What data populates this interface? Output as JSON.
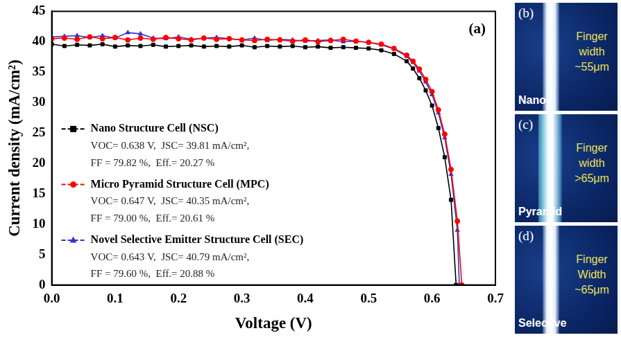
{
  "chart_data": {
    "type": "line",
    "panel_label": "(a)",
    "x_label": "Voltage (V)",
    "y_label": "Current density (mA/cm²)",
    "xlim": [
      0,
      0.7
    ],
    "xticks": [
      {
        "value": 0,
        "label": "0.0"
      },
      0.1,
      0.2,
      0.3,
      0.4,
      0.5,
      0.6,
      0.7
    ],
    "ylim": [
      0,
      45
    ],
    "yticks": [
      0,
      5,
      10,
      15,
      20,
      25,
      30,
      35,
      40,
      45
    ],
    "grid": false,
    "legend": "left",
    "series": [
      {
        "name": "Nano Structure Cell (NSC)",
        "color": "#000000",
        "marker": "square",
        "line_style": "solid",
        "stats": [
          "VOC= 0.638 V,  JSC= 39.81 mA/cm²,",
          "FF = 79.82 %,  Eff.= 20.27 %"
        ],
        "x": [
          0,
          0.02,
          0.04,
          0.06,
          0.08,
          0.1,
          0.12,
          0.14,
          0.16,
          0.18,
          0.2,
          0.22,
          0.24,
          0.26,
          0.28,
          0.3,
          0.32,
          0.34,
          0.36,
          0.38,
          0.4,
          0.42,
          0.44,
          0.46,
          0.48,
          0.5,
          0.52,
          0.54,
          0.56,
          0.57,
          0.58,
          0.59,
          0.6,
          0.61,
          0.62,
          0.63,
          0.638
        ],
        "values": [
          39.6,
          39.3,
          39.5,
          39.4,
          39.6,
          39.2,
          39.4,
          39.3,
          39.5,
          39.2,
          39.3,
          39.4,
          39.2,
          39.3,
          39.2,
          39.4,
          39.1,
          39.3,
          39.2,
          39.3,
          39.1,
          39.2,
          39.0,
          39.1,
          39.0,
          38.9,
          38.6,
          38.0,
          36.8,
          35.6,
          34.0,
          32.0,
          29.5,
          25.8,
          21.0,
          14.0,
          0
        ]
      },
      {
        "name": "Micro Pyramid Structure Cell (MPC)",
        "color": "#ff0000",
        "marker": "circle",
        "line_style": "solid",
        "stats": [
          "VOC= 0.647 V,  JSC= 40.35 mA/cm²,",
          "FF = 79.00 %,  Eff.= 20.61 %"
        ],
        "x": [
          0,
          0.02,
          0.04,
          0.06,
          0.08,
          0.1,
          0.12,
          0.14,
          0.16,
          0.18,
          0.2,
          0.22,
          0.24,
          0.26,
          0.28,
          0.3,
          0.32,
          0.34,
          0.36,
          0.38,
          0.4,
          0.42,
          0.44,
          0.46,
          0.48,
          0.5,
          0.52,
          0.54,
          0.56,
          0.57,
          0.58,
          0.59,
          0.6,
          0.61,
          0.62,
          0.63,
          0.64,
          0.647
        ],
        "values": [
          40.5,
          40.6,
          40.4,
          40.8,
          40.5,
          40.7,
          40.3,
          40.6,
          40.4,
          40.7,
          40.5,
          40.3,
          40.6,
          40.4,
          40.5,
          40.3,
          40.2,
          40.4,
          40.3,
          40.1,
          40.3,
          40.0,
          40.2,
          40.4,
          40.1,
          39.9,
          39.6,
          38.9,
          37.8,
          36.8,
          35.5,
          33.8,
          31.8,
          28.8,
          24.8,
          19.0,
          10.5,
          0
        ]
      },
      {
        "name": "Novel Selective Emitter Structure Cell (SEC)",
        "color": "#3333cc",
        "marker": "triangle",
        "line_style": "solid",
        "stats": [
          "VOC= 0.643 V,  JSC= 40.79 mA/cm²,",
          "FF = 79.60 %,  Eff.= 20.88 %"
        ],
        "x": [
          0,
          0.02,
          0.04,
          0.06,
          0.08,
          0.1,
          0.12,
          0.14,
          0.16,
          0.18,
          0.2,
          0.22,
          0.24,
          0.26,
          0.28,
          0.3,
          0.32,
          0.34,
          0.36,
          0.38,
          0.4,
          0.42,
          0.44,
          0.46,
          0.48,
          0.5,
          0.52,
          0.54,
          0.56,
          0.57,
          0.58,
          0.59,
          0.6,
          0.61,
          0.62,
          0.63,
          0.64,
          0.643
        ],
        "values": [
          40.8,
          40.9,
          41.0,
          40.7,
          41.0,
          40.6,
          41.5,
          41.3,
          40.6,
          40.5,
          40.8,
          40.4,
          40.6,
          40.7,
          40.5,
          40.3,
          40.6,
          40.2,
          40.4,
          40.3,
          40.1,
          40.2,
          40.3,
          40.0,
          40.1,
          39.9,
          39.5,
          38.8,
          37.6,
          36.6,
          35.2,
          33.4,
          31.3,
          28.3,
          24.2,
          18.2,
          9.0,
          0
        ]
      }
    ]
  },
  "panels": [
    {
      "label": "(b)",
      "name": "Nano",
      "note": "Finger width ~55μm"
    },
    {
      "label": "(c)",
      "name": "Pyramid",
      "note": "Finger width >65μm"
    },
    {
      "label": "(d)",
      "name": "Selective",
      "note": "Finger Width ~65μm"
    }
  ]
}
